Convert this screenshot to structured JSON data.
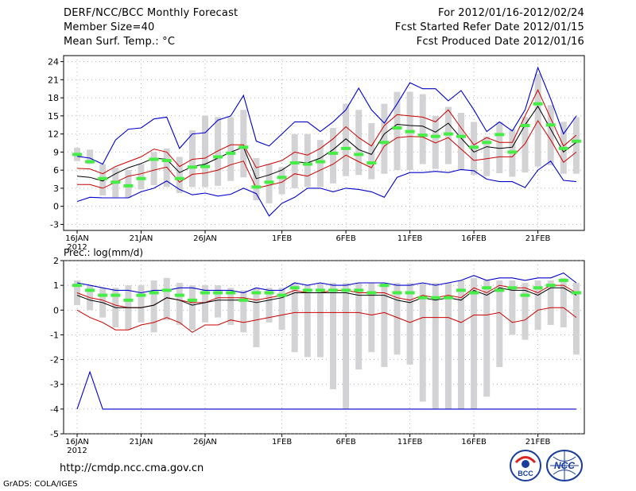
{
  "header": {
    "title": "DERF/NCC/BCC Monthly Forecast",
    "member_size": "Member Size=40",
    "variable": "Mean Surf. Temp.: °C",
    "period": "For 2012/01/16-2012/02/24",
    "started": "Fcst Started Refer Date 2012/01/15",
    "produced": "Fcst Produced Date 2012/01/16"
  },
  "footer": {
    "url": "http://cmdp.ncc.cma.gov.cn",
    "grads": "GrADS: COLA/IGES",
    "logo_bcc": "BCC",
    "logo_ncc": "NCC"
  },
  "colors": {
    "envelope": "#0000cc",
    "spread": "#cc0000",
    "mean": "#000000",
    "box": "#d3d3d6",
    "marker": "#44ee44"
  },
  "chart_data": [
    {
      "type": "line",
      "title": "Mean Surf. Temp.: °C",
      "x_ticks": [
        "16JAN",
        "21JAN",
        "26JAN",
        "1FEB",
        "6FEB",
        "11FEB",
        "16FEB",
        "21FEB"
      ],
      "x_tick_days": [
        1,
        6,
        11,
        17,
        22,
        27,
        32,
        37
      ],
      "x_sublabel": "2012",
      "ylim": [
        -4,
        25
      ],
      "y_ticks": [
        -3,
        0,
        3,
        6,
        9,
        12,
        15,
        18,
        21,
        24
      ],
      "days": [
        1,
        2,
        3,
        4,
        5,
        6,
        7,
        8,
        9,
        10,
        11,
        12,
        13,
        14,
        15,
        16,
        17,
        18,
        19,
        20,
        21,
        22,
        23,
        24,
        25,
        26,
        27,
        28,
        29,
        30,
        31,
        32,
        33,
        34,
        35,
        36,
        37,
        38,
        39,
        40
      ],
      "series": [
        {
          "name": "max",
          "values": [
            0.8,
            1.5,
            1.4,
            1.4,
            1.4,
            2.4,
            3.0,
            4.2,
            2.8,
            1.9,
            2.2,
            1.7,
            2.0,
            3.0,
            2.1,
            -1.6,
            0.5,
            1.5,
            3.0,
            3.0,
            2.4,
            3.0,
            2.8,
            2.4,
            1.5,
            4.8,
            5.6,
            5.6,
            5.8,
            5.6,
            6.1,
            5.9,
            4.5,
            4.1,
            4.1,
            3.1,
            6.0,
            7.5,
            4.3,
            4.1
          ]
        },
        {
          "name": "top",
          "values": [
            8.3,
            8.0,
            7.0,
            11.0,
            12.8,
            13.0,
            14.5,
            14.8,
            9.6,
            12.0,
            12.2,
            14.3,
            15.0,
            18.4,
            10.8,
            10.0,
            12.0,
            14.0,
            14.0,
            12.4,
            14.0,
            16.0,
            19.6,
            16.0,
            13.8,
            17.0,
            20.5,
            19.5,
            19.5,
            17.5,
            19.2,
            16.0,
            12.4,
            14.0,
            12.5,
            16.0,
            23.0,
            17.8,
            12.0,
            15.0
          ]
        },
        {
          "name": "upper",
          "values": [
            6.3,
            6.2,
            5.4,
            6.6,
            7.4,
            8.2,
            9.5,
            9.0,
            6.6,
            7.8,
            8.0,
            9.2,
            10.2,
            10.2,
            6.4,
            7.0,
            7.6,
            9.0,
            8.5,
            9.6,
            11.2,
            13.2,
            11.4,
            10.0,
            13.4,
            15.2,
            15.0,
            14.8,
            14.0,
            16.0,
            13.0,
            10.2,
            11.4,
            10.6,
            10.6,
            15.0,
            19.3,
            14.6,
            10.0,
            11.8
          ]
        },
        {
          "name": "mean",
          "values": [
            5.0,
            4.8,
            4.2,
            5.4,
            6.4,
            7.1,
            8.0,
            7.8,
            5.6,
            6.6,
            7.0,
            8.0,
            9.0,
            9.8,
            4.6,
            5.2,
            6.0,
            7.4,
            7.2,
            8.0,
            9.4,
            11.2,
            9.4,
            8.6,
            12.0,
            13.6,
            13.4,
            13.3,
            12.3,
            13.8,
            11.3,
            9.0,
            9.9,
            9.6,
            9.8,
            13.5,
            16.6,
            12.8,
            9.0,
            10.6
          ]
        },
        {
          "name": "lower",
          "values": [
            3.6,
            3.6,
            3.0,
            4.0,
            5.0,
            5.4,
            6.0,
            6.5,
            4.0,
            5.3,
            5.5,
            6.0,
            6.9,
            7.5,
            3.0,
            3.5,
            4.0,
            5.4,
            5.0,
            6.0,
            7.0,
            8.5,
            7.4,
            6.4,
            10.0,
            11.4,
            11.6,
            11.5,
            10.5,
            11.4,
            9.5,
            7.6,
            7.9,
            8.2,
            8.2,
            10.4,
            14.2,
            11.0,
            7.3,
            9.0
          ]
        },
        {
          "name": "markers",
          "values": [
            8.6,
            7.4,
            4.6,
            4.0,
            3.4,
            4.6,
            7.8,
            7.6,
            4.6,
            6.5,
            6.6,
            8.2,
            8.8,
            9.8,
            3.2,
            4.0,
            4.8,
            7.2,
            7.0,
            7.4,
            8.8,
            9.6,
            8.6,
            7.2,
            10.6,
            13.0,
            12.4,
            11.8,
            11.6,
            12.0,
            11.6,
            9.8,
            10.6,
            11.9,
            9.0,
            13.4,
            17.0,
            13.5,
            9.6,
            10.8
          ]
        },
        {
          "name": "box_low",
          "values": [
            7.5,
            7.0,
            1.8,
            1.5,
            1.4,
            2.8,
            3.5,
            3.2,
            2.2,
            3.2,
            3.2,
            3.4,
            4.2,
            4.8,
            1.0,
            0.5,
            2.0,
            3.0,
            3.2,
            3.2,
            3.8,
            5.0,
            5.2,
            4.5,
            5.4,
            6.0,
            6.0,
            7.0,
            6.2,
            7.0,
            6.0,
            5.2,
            5.0,
            5.5,
            4.9,
            5.6,
            6.6,
            6.8,
            5.4,
            5.4
          ]
        },
        {
          "name": "box_high",
          "values": [
            9.7,
            9.4,
            7.0,
            6.4,
            6.0,
            7.0,
            9.0,
            9.6,
            8.2,
            12.6,
            15.0,
            14.8,
            14.8,
            16.0,
            8.0,
            7.0,
            6.5,
            12.0,
            12.0,
            11.0,
            13.0,
            17.0,
            16.0,
            13.8,
            17.0,
            19.0,
            19.0,
            18.6,
            15.0,
            16.5,
            15.5,
            14.0,
            11.6,
            14.0,
            12.8,
            14.8,
            22.0,
            16.8,
            14.0,
            14.8
          ]
        }
      ]
    },
    {
      "type": "line",
      "title": "Prec.: log(mm/d)",
      "x_ticks": [
        "16JAN",
        "21JAN",
        "26JAN",
        "1FEB",
        "6FEB",
        "11FEB",
        "16FEB",
        "21FEB"
      ],
      "x_tick_days": [
        1,
        6,
        11,
        17,
        22,
        27,
        32,
        37
      ],
      "x_sublabel": "2012",
      "ylim": [
        -5,
        2
      ],
      "y_ticks": [
        -5,
        -4,
        -3,
        -2,
        -1,
        0,
        1,
        2
      ],
      "days": [
        1,
        2,
        3,
        4,
        5,
        6,
        7,
        8,
        9,
        10,
        11,
        12,
        13,
        14,
        15,
        16,
        17,
        18,
        19,
        20,
        21,
        22,
        23,
        24,
        25,
        26,
        27,
        28,
        29,
        30,
        31,
        32,
        33,
        34,
        35,
        36,
        37,
        38,
        39,
        40
      ],
      "series": [
        {
          "name": "top",
          "values": [
            1.1,
            1.0,
            0.9,
            0.8,
            0.8,
            0.7,
            0.8,
            0.8,
            0.9,
            0.9,
            0.8,
            0.8,
            0.8,
            0.7,
            0.9,
            0.8,
            0.8,
            1.1,
            1.0,
            1.1,
            1.0,
            1.0,
            1.1,
            1.1,
            1.1,
            1.0,
            1.0,
            1.1,
            1.0,
            1.1,
            1.2,
            1.4,
            1.2,
            1.3,
            1.3,
            1.2,
            1.3,
            1.3,
            1.5,
            1.1
          ]
        },
        {
          "name": "upper",
          "values": [
            0.7,
            0.5,
            0.4,
            0.2,
            0.1,
            0.1,
            0.2,
            0.5,
            0.4,
            0.3,
            0.3,
            0.5,
            0.5,
            0.5,
            0.4,
            0.5,
            0.6,
            0.8,
            0.7,
            0.7,
            0.8,
            0.8,
            0.7,
            0.7,
            0.7,
            0.5,
            0.4,
            0.6,
            0.5,
            0.6,
            0.5,
            0.9,
            0.7,
            1.0,
            0.9,
            0.9,
            0.7,
            1.0,
            1.0,
            0.7
          ]
        },
        {
          "name": "mean",
          "values": [
            0.6,
            0.4,
            0.3,
            0.1,
            0.1,
            0.1,
            0.2,
            0.5,
            0.4,
            0.2,
            0.3,
            0.4,
            0.4,
            0.4,
            0.3,
            0.4,
            0.5,
            0.7,
            0.7,
            0.7,
            0.7,
            0.7,
            0.6,
            0.6,
            0.6,
            0.4,
            0.3,
            0.5,
            0.4,
            0.5,
            0.4,
            0.8,
            0.6,
            0.9,
            0.8,
            0.8,
            0.6,
            0.9,
            0.9,
            0.6
          ]
        },
        {
          "name": "lower",
          "values": [
            0.0,
            -0.3,
            -0.5,
            -0.8,
            -0.8,
            -0.6,
            -0.5,
            -0.3,
            -0.5,
            -0.9,
            -0.6,
            -0.6,
            -0.4,
            -0.5,
            -0.4,
            -0.3,
            -0.2,
            -0.1,
            -0.1,
            -0.1,
            -0.1,
            -0.1,
            -0.1,
            -0.2,
            -0.1,
            -0.3,
            -0.5,
            -0.3,
            -0.3,
            -0.3,
            -0.5,
            -0.2,
            -0.2,
            -0.1,
            -0.5,
            -0.4,
            0.0,
            0.1,
            0.1,
            -0.3
          ]
        },
        {
          "name": "min",
          "values": [
            -4.0,
            -2.5,
            -4.0,
            -4.0,
            -4.0,
            -4.0,
            -4.0,
            -4.0,
            -4.0,
            -4.0,
            -4.0,
            -4.0,
            -4.0,
            -4.0,
            -4.0,
            -4.0,
            -4.0,
            -4.0,
            -4.0,
            -4.0,
            -4.0,
            -4.0,
            -4.0,
            -4.0,
            -4.0,
            -4.0,
            -4.0,
            -4.0,
            -4.0,
            -4.0,
            -4.0,
            -4.0,
            -4.0,
            -4.0,
            -4.0,
            -4.0,
            -4.0,
            -4.0,
            -4.0,
            -4.0
          ]
        },
        {
          "name": "markers",
          "values": [
            1.0,
            0.8,
            0.6,
            0.6,
            0.4,
            0.6,
            0.7,
            0.8,
            0.6,
            0.4,
            0.7,
            0.7,
            0.7,
            0.4,
            0.7,
            0.7,
            0.6,
            0.9,
            0.8,
            0.8,
            0.8,
            0.8,
            0.8,
            0.7,
            1.0,
            0.7,
            0.7,
            0.5,
            0.5,
            0.5,
            0.8,
            0.7,
            0.9,
            0.8,
            0.9,
            0.6,
            0.9,
            1.0,
            1.2,
            0.7
          ]
        },
        {
          "name": "box_low",
          "values": [
            0.2,
            0.0,
            -0.3,
            -0.7,
            -0.8,
            -0.5,
            -0.9,
            -0.4,
            -0.6,
            -0.8,
            -0.5,
            -0.3,
            -0.6,
            -0.9,
            -1.5,
            -0.5,
            -0.8,
            -1.7,
            -1.9,
            -1.9,
            -3.2,
            -4.0,
            -2.4,
            -1.7,
            -2.3,
            -1.8,
            -2.2,
            -3.7,
            -4.0,
            -4.0,
            -4.0,
            -4.0,
            -3.5,
            -2.3,
            -1.0,
            -1.2,
            -0.8,
            -0.6,
            -0.7,
            -1.8
          ]
        },
        {
          "name": "box_high",
          "values": [
            1.2,
            1.0,
            0.9,
            0.9,
            1.0,
            1.0,
            1.2,
            1.3,
            1.1,
            1.0,
            1.0,
            1.0,
            0.9,
            0.8,
            0.9,
            0.9,
            0.9,
            1.1,
            1.0,
            1.1,
            1.1,
            1.1,
            1.1,
            1.1,
            1.1,
            1.1,
            1.1,
            1.1,
            1.1,
            1.1,
            1.2,
            1.3,
            1.2,
            1.2,
            1.2,
            1.1,
            1.2,
            1.2,
            1.3,
            1.1
          ]
        }
      ]
    }
  ]
}
